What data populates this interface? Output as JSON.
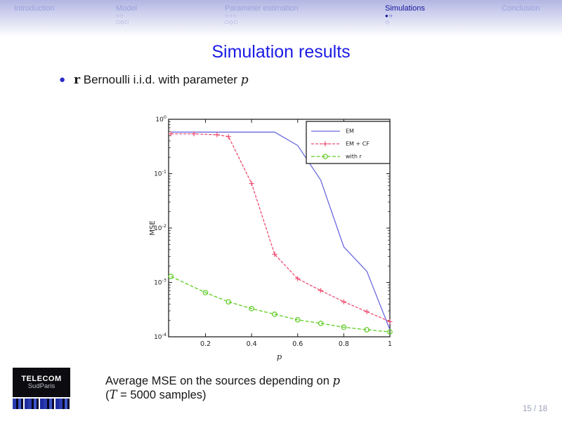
{
  "nav": {
    "sections": [
      {
        "label": "Introduction",
        "row1": "",
        "row2": "",
        "active": false
      },
      {
        "label": "Model",
        "row1": "○○",
        "row2": "□◇□",
        "active": false
      },
      {
        "label": "Parameter estimation",
        "row1": "○○○",
        "row2": "□◇□",
        "active": false
      },
      {
        "label": "Simulations",
        "row1": "●○",
        "row2": "◇",
        "active": true
      },
      {
        "label": "Conclusion",
        "row1": "",
        "row2": "",
        "active": false
      }
    ]
  },
  "title": "Simulation results",
  "bullet": {
    "bold_r": "r",
    "text": " Bernoulli i.i.d. with parameter ",
    "italic_p": "p"
  },
  "chart_data": {
    "type": "line",
    "title": "",
    "xlabel": "p",
    "ylabel": "MSE",
    "x_axis": {
      "min": 0.04,
      "max": 1.0,
      "ticks": [
        0.2,
        0.4,
        0.6,
        0.8,
        1
      ]
    },
    "y_axis": {
      "scale": "log",
      "min_exp": -4,
      "max_exp": 0,
      "tick_exponents": [
        0,
        -1,
        -2,
        -3,
        -4
      ]
    },
    "grid": false,
    "legend_position": "top-right",
    "series": [
      {
        "name": "EM",
        "color": "#6a6ae0",
        "marker": "none",
        "dash": "",
        "x": [
          0.05,
          0.2,
          0.3,
          0.4,
          0.5,
          0.6,
          0.7,
          0.8,
          0.9,
          1.0
        ],
        "y": [
          0.58,
          0.58,
          0.58,
          0.58,
          0.58,
          0.33,
          0.076,
          0.0045,
          0.0016,
          0.000135
        ]
      },
      {
        "name": "EM + CF",
        "color": "#ee4d72",
        "marker": "plus",
        "dash": "4,2",
        "x": [
          0.05,
          0.15,
          0.25,
          0.3,
          0.4,
          0.5,
          0.6,
          0.7,
          0.8,
          0.9,
          1.0
        ],
        "y": [
          0.54,
          0.54,
          0.52,
          0.48,
          0.066,
          0.0033,
          0.00117,
          0.00071,
          0.00044,
          0.00029,
          0.00019
        ]
      },
      {
        "name": "with r",
        "color": "#5ecc22",
        "marker": "circle",
        "dash": "5,2.5",
        "x": [
          0.05,
          0.2,
          0.3,
          0.4,
          0.5,
          0.6,
          0.7,
          0.8,
          0.9,
          1.0
        ],
        "y": [
          0.00129,
          0.00065,
          0.00044,
          0.00033,
          0.00026,
          0.000205,
          0.000177,
          0.00015,
          0.000135,
          0.000123
        ]
      }
    ]
  },
  "caption": {
    "line1_pre": "Average MSE on the sources depending on ",
    "line1_math": "p",
    "line2_pre": "(",
    "line2_math": "T",
    "line2_post": " = 5000 samples)"
  },
  "logo": {
    "line1": "TELECOM",
    "line2": "SudParis"
  },
  "footer": {
    "page_number": "15 / 18"
  },
  "colors": {
    "title": "#1b1be6",
    "nav_active": "#12129b",
    "nav_inactive": "#9ba1dc",
    "bullet": "#2a2ac8"
  }
}
